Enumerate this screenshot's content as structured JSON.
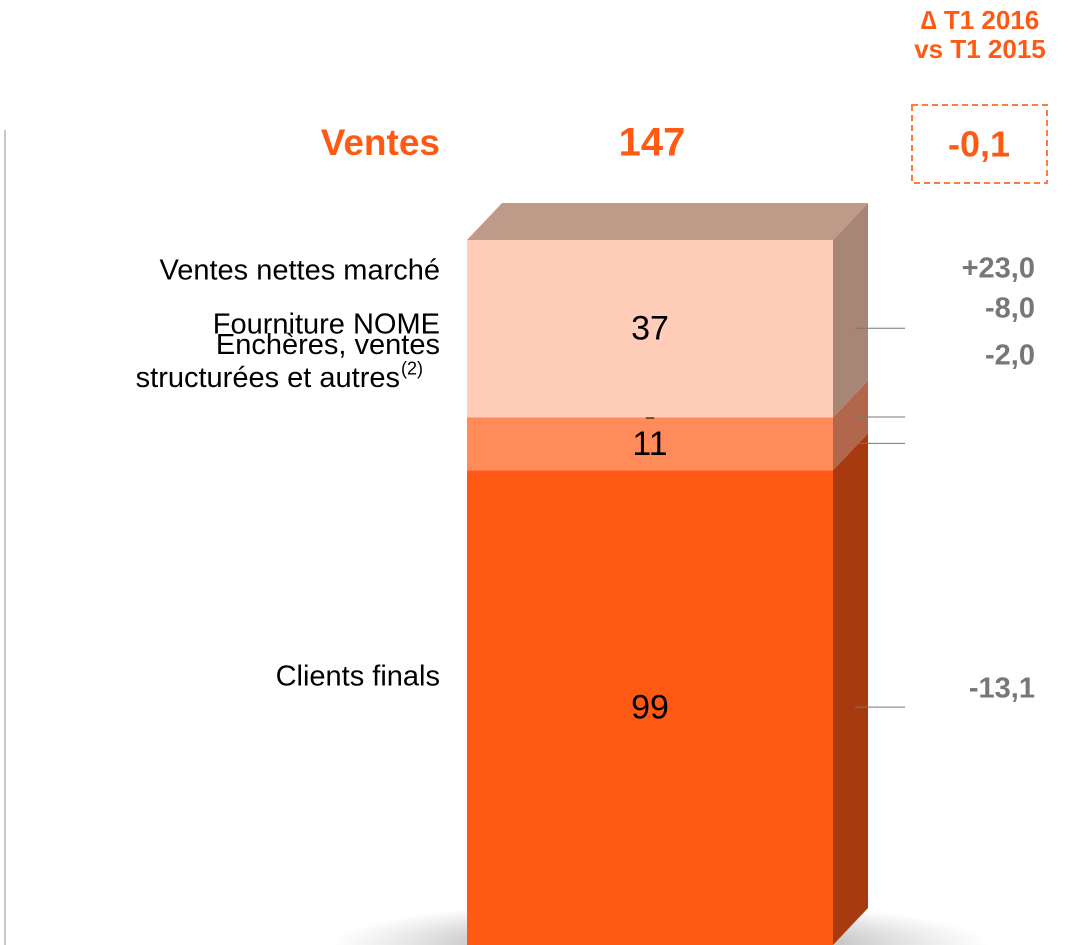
{
  "chart_data": {
    "type": "bar",
    "title": "Ventes",
    "total": 147,
    "delta_header": [
      "∆ T1 2016",
      "vs T1 2015"
    ],
    "total_delta": {
      "value": -0.1,
      "label": "-0,1"
    },
    "ylim": [
      0,
      147
    ],
    "series": [
      {
        "name": "Clients finals",
        "color": "#ff5a14",
        "side_color": "#a83a10",
        "values": [
          99
        ],
        "deltas": [
          {
            "value": -13.1,
            "label": "-13,1"
          }
        ]
      },
      {
        "name": [
          "Enchères, ventes",
          "structurées et autres"
        ],
        "footnote": "(2)",
        "color": "#ff8a5a",
        "side_color": "#b0674c",
        "values": [
          11
        ],
        "deltas": [
          {
            "value": -2.0,
            "label": "-2,0"
          }
        ]
      },
      {
        "name": "Fourniture NOME",
        "color": "#ffae8c",
        "side_color": "#b07a66",
        "values": [
          0
        ],
        "value_labels": [
          "-"
        ],
        "deltas": [
          {
            "value": -8.0,
            "label": "-8,0"
          }
        ]
      },
      {
        "name": "Ventes nettes marché",
        "color": "#ffcdb8",
        "side_color": "#a88676",
        "values": [
          37
        ],
        "deltas": [
          {
            "value": 23.0,
            "label": "+23,0"
          }
        ]
      }
    ]
  }
}
